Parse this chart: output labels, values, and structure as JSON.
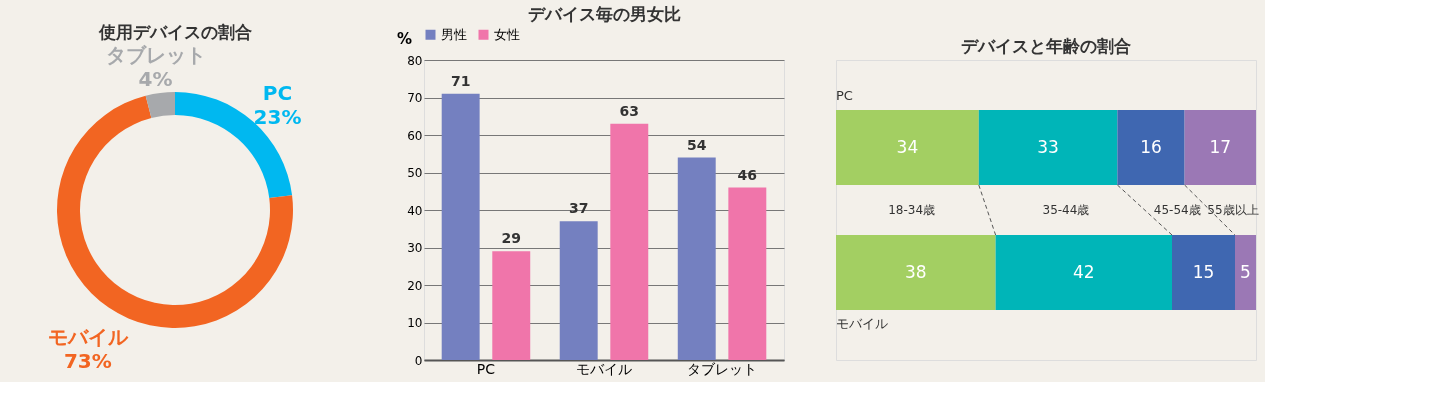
{
  "chart_data": [
    {
      "type": "donut",
      "title": "使用デバイスの割合",
      "categories": [
        "PC",
        "モバイル",
        "タブレット"
      ],
      "values": [
        23,
        73,
        4
      ],
      "colors": [
        "#00b8f0",
        "#f26522",
        "#a7a9ac"
      ],
      "value_labels": [
        "23%",
        "73%",
        "4%"
      ],
      "legend": false
    },
    {
      "type": "bar",
      "title": "デバイス毎の男女比",
      "ylabel": "%",
      "categories": [
        "PC",
        "モバイル",
        "タブレット"
      ],
      "series": [
        {
          "name": "男性",
          "color": "#7480c0",
          "values": [
            71,
            37,
            54
          ]
        },
        {
          "name": "女性",
          "color": "#f075aa",
          "values": [
            29,
            63,
            46
          ]
        }
      ],
      "ylim": [
        0,
        80
      ],
      "yticks": [
        0,
        10,
        20,
        30,
        40,
        50,
        60,
        70,
        80
      ],
      "grid": "y",
      "legend": "top",
      "data_labels": true
    },
    {
      "type": "bar",
      "orientation": "horizontal",
      "stacked": true,
      "title": "デバイスと年齢の割合",
      "categories": [
        "PC",
        "モバイル"
      ],
      "series": [
        {
          "name": "18-34歳",
          "color": "#a3cf62",
          "values": [
            34,
            38
          ]
        },
        {
          "name": "35-44歳",
          "color": "#00b5b8",
          "values": [
            33,
            42
          ]
        },
        {
          "name": "45-54歳",
          "color": "#3f67b1",
          "values": [
            16,
            15
          ]
        },
        {
          "name": "55歳以上",
          "color": "#9b78b5",
          "values": [
            17,
            5
          ]
        }
      ],
      "data_labels": true
    }
  ]
}
